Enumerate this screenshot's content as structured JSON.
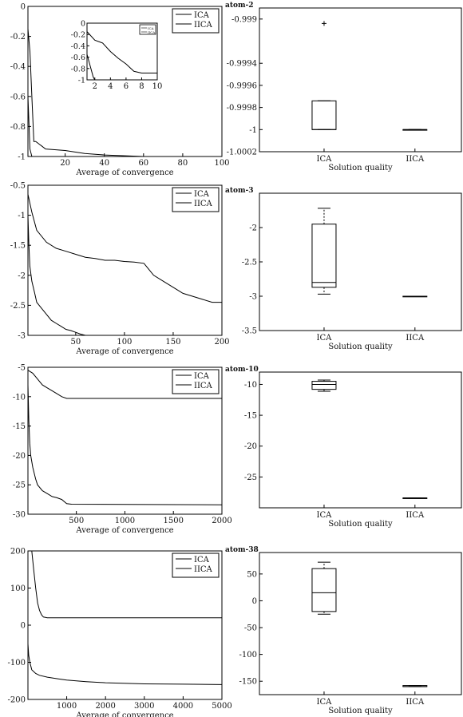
{
  "chart_data": [
    {
      "id": "p1",
      "type": "line",
      "title": "",
      "xlabel": "Average of convergence",
      "ylabel": "",
      "xlim": [
        1,
        100
      ],
      "ylim": [
        -1,
        0
      ],
      "xticks": [
        20,
        40,
        60,
        80,
        100
      ],
      "yticks": [
        0,
        -0.2,
        -0.4,
        -0.6,
        -0.8,
        -1
      ],
      "legend": "top-right",
      "series": [
        {
          "name": "ICA",
          "x": [
            1,
            2,
            3,
            4,
            5,
            6,
            7,
            8,
            10,
            20,
            30,
            40,
            60,
            100
          ],
          "y": [
            -0.15,
            -0.3,
            -0.6,
            -0.9,
            -0.9,
            -0.91,
            -0.92,
            -0.93,
            -0.95,
            -0.96,
            -0.98,
            -0.99,
            -1,
            -1
          ]
        },
        {
          "name": "IICA",
          "x": [
            1,
            2,
            3,
            100
          ],
          "y": [
            -0.6,
            -0.95,
            -1,
            -1
          ]
        }
      ],
      "inset": {
        "xlim": [
          1,
          10
        ],
        "ylim": [
          -1,
          0
        ],
        "xticks": [
          2,
          4,
          6,
          8,
          10
        ],
        "yticks": [
          0,
          -0.2,
          -0.4,
          -0.6,
          -0.8,
          -1
        ],
        "legend": "top-right",
        "legend_labels": [
          "ICA",
          "IICA"
        ],
        "series": [
          {
            "name": "ICA",
            "x": [
              1,
              2,
              3,
              4,
              5,
              6,
              7,
              8,
              10
            ],
            "y": [
              -0.15,
              -0.3,
              -0.35,
              -0.5,
              -0.62,
              -0.72,
              -0.85,
              -0.88,
              -0.88
            ]
          },
          {
            "name": "IICA",
            "x": [
              1,
              1.8,
              2,
              10
            ],
            "y": [
              -0.55,
              -0.95,
              -1,
              -1
            ]
          }
        ]
      }
    },
    {
      "id": "b1",
      "type": "box",
      "title": "atom-2",
      "xlabel": "Solution quality",
      "ylabel": "",
      "categories": [
        "ICA",
        "IICA"
      ],
      "ylim": [
        -1.0002,
        -0.9989
      ],
      "yticks": [
        -0.999,
        -0.9994,
        -0.9996,
        -0.9998,
        -1,
        -1.0002
      ],
      "ytick_labels": [
        "-0.999",
        "-0.9994",
        "-0.9996",
        "-0.9998",
        "-1",
        "-1.0002"
      ],
      "boxes": [
        {
          "name": "ICA",
          "min": -1,
          "q1": -1,
          "median": -1,
          "q3": -0.99974,
          "max": -0.99974,
          "outliers": [
            -0.99904
          ]
        },
        {
          "name": "IICA",
          "min": -1,
          "q1": -1,
          "median": -1,
          "q3": -1,
          "max": -1,
          "outliers": []
        }
      ]
    },
    {
      "id": "p2",
      "type": "line",
      "title": "",
      "xlabel": "Average of convergence",
      "ylabel": "",
      "xlim": [
        1,
        200
      ],
      "ylim": [
        -3,
        -0.5
      ],
      "xticks": [
        50,
        100,
        150,
        200
      ],
      "yticks": [
        -0.5,
        -1,
        -1.5,
        -2,
        -2.5,
        -3
      ],
      "legend": "top-right",
      "series": [
        {
          "name": "ICA",
          "x": [
            1,
            5,
            10,
            20,
            30,
            40,
            50,
            60,
            70,
            80,
            90,
            100,
            110,
            120,
            125,
            130,
            140,
            150,
            160,
            170,
            180,
            190,
            200
          ],
          "y": [
            -0.65,
            -0.95,
            -1.25,
            -1.45,
            -1.55,
            -1.6,
            -1.65,
            -1.7,
            -1.72,
            -1.75,
            -1.75,
            -1.77,
            -1.78,
            -1.8,
            -1.9,
            -2.0,
            -2.1,
            -2.2,
            -2.3,
            -2.35,
            -2.4,
            -2.45,
            -2.45
          ]
        },
        {
          "name": "IICA",
          "x": [
            1,
            2,
            3,
            5,
            8,
            10,
            15,
            20,
            25,
            30,
            35,
            40,
            45,
            50,
            55,
            60,
            200
          ],
          "y": [
            -1.0,
            -1.5,
            -1.85,
            -2.1,
            -2.3,
            -2.45,
            -2.55,
            -2.65,
            -2.75,
            -2.8,
            -2.85,
            -2.9,
            -2.92,
            -2.95,
            -2.98,
            -3,
            -3
          ]
        }
      ]
    },
    {
      "id": "b2",
      "type": "box",
      "title": "atom-3",
      "xlabel": "Solution quality",
      "ylabel": "",
      "categories": [
        "ICA",
        "IICA"
      ],
      "ylim": [
        -3.5,
        -1.5
      ],
      "yticks": [
        -2,
        -2.5,
        -3,
        -3.5
      ],
      "ytick_labels": [
        "-2",
        "-2.5",
        "-3",
        "-3.5"
      ],
      "boxes": [
        {
          "name": "ICA",
          "min": -2.97,
          "q1": -2.87,
          "median": -2.8,
          "q3": -1.95,
          "max": -1.72,
          "outliers": []
        },
        {
          "name": "IICA",
          "min": -3,
          "q1": -3,
          "median": -3,
          "q3": -3,
          "max": -3,
          "outliers": []
        }
      ]
    },
    {
      "id": "p3",
      "type": "line",
      "title": "",
      "xlabel": "Average of convergence",
      "ylabel": "",
      "xlim": [
        1,
        2000
      ],
      "ylim": [
        -30,
        -5
      ],
      "xticks": [
        500,
        1000,
        1500,
        2000
      ],
      "yticks": [
        -5,
        -10,
        -15,
        -20,
        -25,
        -30
      ],
      "legend": "top-right",
      "series": [
        {
          "name": "ICA",
          "x": [
            1,
            50,
            100,
            150,
            200,
            250,
            300,
            350,
            400,
            450,
            2000
          ],
          "y": [
            -5.5,
            -6,
            -7,
            -8,
            -8.5,
            -9,
            -9.5,
            -10,
            -10.3,
            -10.3,
            -10.3
          ]
        },
        {
          "name": "IICA",
          "x": [
            1,
            10,
            20,
            30,
            50,
            80,
            100,
            150,
            200,
            250,
            300,
            350,
            400,
            450,
            2000
          ],
          "y": [
            -8,
            -14,
            -18,
            -20,
            -22,
            -24,
            -25,
            -26,
            -26.5,
            -27,
            -27.2,
            -27.5,
            -28.2,
            -28.3,
            -28.4
          ]
        }
      ]
    },
    {
      "id": "b3",
      "type": "box",
      "title": "atom-10",
      "xlabel": "Solution quality",
      "ylabel": "",
      "categories": [
        "ICA",
        "IICA"
      ],
      "ylim": [
        -30,
        -8
      ],
      "yticks": [
        -10,
        -15,
        -20,
        -25
      ],
      "ytick_labels": [
        "-10",
        "-15",
        "-20",
        "-25"
      ],
      "boxes": [
        {
          "name": "ICA",
          "min": -11.1,
          "q1": -10.8,
          "median": -10,
          "q3": -9.5,
          "max": -9.3,
          "outliers": []
        },
        {
          "name": "IICA",
          "min": -28.4,
          "q1": -28.4,
          "median": -28.4,
          "q3": -28.4,
          "max": -28.4,
          "outliers": []
        }
      ]
    },
    {
      "id": "p4",
      "type": "line",
      "title": "",
      "xlabel": "Average of convergence",
      "ylabel": "",
      "xlim": [
        1,
        5000
      ],
      "ylim": [
        -200,
        200
      ],
      "xticks": [
        1000,
        2000,
        3000,
        4000,
        5000
      ],
      "yticks": [
        200,
        100,
        0,
        -100,
        -200
      ],
      "legend": "top-right",
      "series": [
        {
          "name": "ICA",
          "x": [
            1,
            100,
            150,
            200,
            250,
            300,
            350,
            400,
            500,
            5000
          ],
          "y": [
            200,
            200,
            150,
            100,
            60,
            40,
            28,
            22,
            20,
            20
          ]
        },
        {
          "name": "IICA",
          "x": [
            1,
            20,
            50,
            100,
            200,
            300,
            500,
            800,
            1000,
            1500,
            2000,
            3000,
            4000,
            5000
          ],
          "y": [
            -50,
            -80,
            -100,
            -120,
            -130,
            -135,
            -140,
            -145,
            -148,
            -152,
            -155,
            -158,
            -159,
            -160
          ]
        }
      ]
    },
    {
      "id": "b4",
      "type": "box",
      "title": "atom-38",
      "xlabel": "Solution quality",
      "ylabel": "",
      "categories": [
        "ICA",
        "IICA"
      ],
      "ylim": [
        -175,
        90
      ],
      "yticks": [
        50,
        0,
        -50,
        -100,
        -150
      ],
      "ytick_labels": [
        "50",
        "0",
        "-50",
        "-100",
        "-150"
      ],
      "boxes": [
        {
          "name": "ICA",
          "min": -25,
          "q1": -20,
          "median": 15,
          "q3": 60,
          "max": 72,
          "outliers": []
        },
        {
          "name": "IICA",
          "min": -160,
          "q1": -160,
          "median": -160,
          "q3": -158,
          "max": -158,
          "outliers": []
        }
      ]
    }
  ]
}
